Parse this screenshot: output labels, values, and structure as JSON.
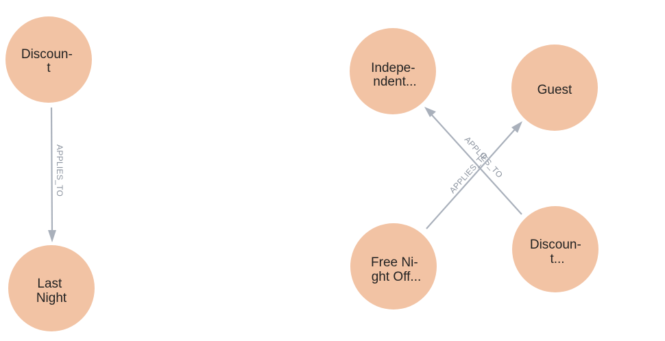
{
  "graph": {
    "node_color": "#f2c3a4",
    "edge_color": "#a9b0bb",
    "nodes": {
      "discount_1": {
        "lines": [
          "Discoun-",
          "t"
        ]
      },
      "last_night": {
        "lines": [
          "Last",
          "Night"
        ]
      },
      "independent": {
        "lines": [
          "Indepe-",
          "ndent..."
        ]
      },
      "guest": {
        "lines": [
          "Guest"
        ]
      },
      "free_night": {
        "lines": [
          "Free Ni-",
          "ght Off..."
        ]
      },
      "discount_2": {
        "lines": [
          "Discoun-",
          "t..."
        ]
      }
    },
    "edges": {
      "e1": {
        "from": "discount_1",
        "to": "last_night",
        "label": "APPLIES_TO"
      },
      "e2": {
        "from": "discount_2",
        "to": "independent",
        "label": "APPLIES_TO"
      },
      "e3": {
        "from": "free_night",
        "to": "guest",
        "label": "APPLIES_TO"
      }
    }
  }
}
